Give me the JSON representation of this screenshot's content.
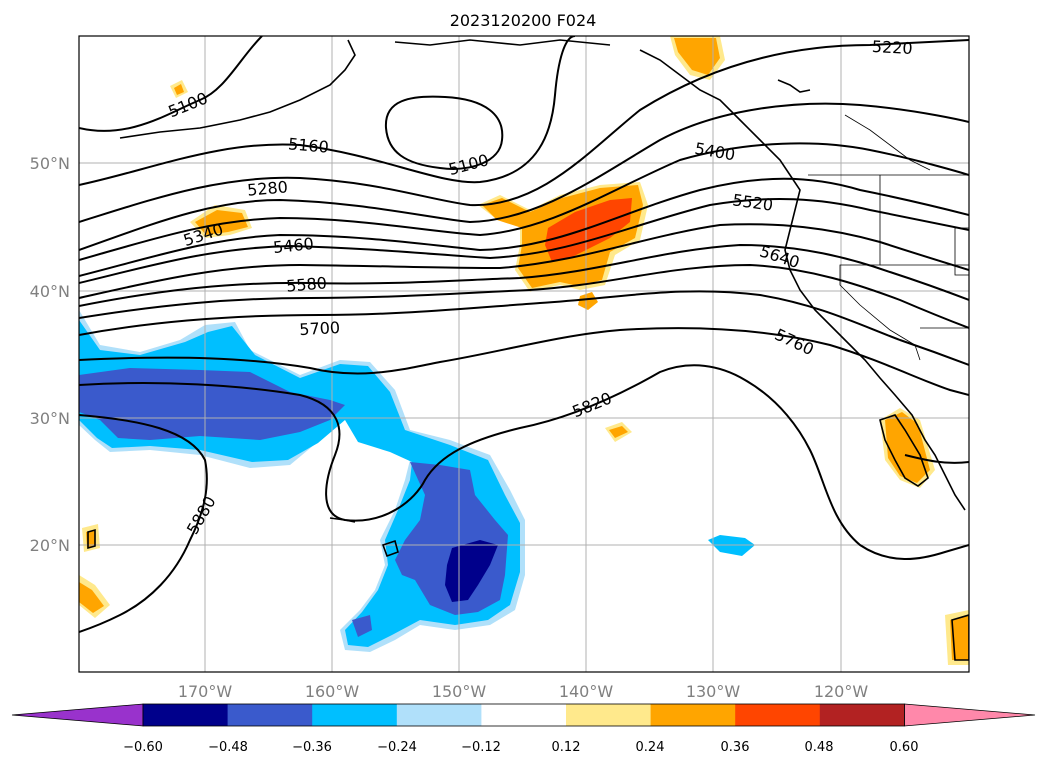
{
  "title": "2023120200 F024",
  "map": {
    "lat_labels": [
      "50°N",
      "40°N",
      "30°N",
      "20°N"
    ],
    "lon_labels": [
      "170°W",
      "160°W",
      "150°W",
      "140°W",
      "130°W",
      "120°W"
    ],
    "contour_labels": [
      "5100",
      "5160",
      "5220",
      "5100",
      "5280",
      "5340",
      "5400",
      "5460",
      "5520",
      "5580",
      "5640",
      "5700",
      "5760",
      "5820",
      "5880"
    ]
  },
  "colorbar": {
    "ticks": [
      "−0.60",
      "−0.48",
      "−0.36",
      "−0.24",
      "−0.12",
      "0.12",
      "0.24",
      "0.36",
      "0.48",
      "0.60"
    ],
    "colors": [
      "#9932cc",
      "#00008b",
      "#3a5acc",
      "#00bfff",
      "#b0e0fa",
      "#ffffff",
      "#ffe98c",
      "#ffa500",
      "#ff4500",
      "#b22222",
      "#ff88aa"
    ]
  }
}
